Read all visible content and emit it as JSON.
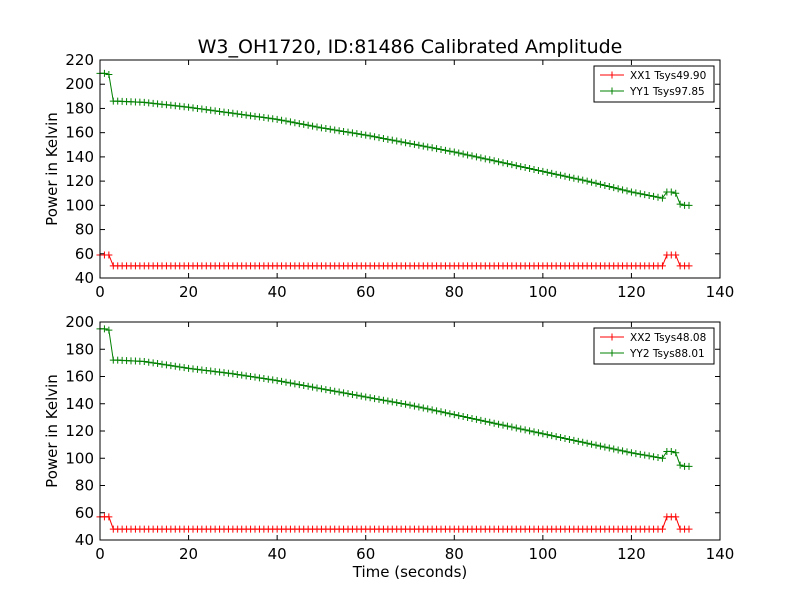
{
  "figure": {
    "title": "W3_OH1720, ID:81486 Calibrated Amplitude"
  },
  "chart_data": [
    {
      "type": "line",
      "title": "W3_OH1720, ID:81486 Calibrated Amplitude",
      "xlabel": "",
      "ylabel": "Power in Kelvin",
      "xlim": [
        0,
        140
      ],
      "ylim": [
        40,
        220
      ],
      "xticks": [
        0,
        20,
        40,
        60,
        80,
        100,
        120,
        140
      ],
      "yticks": [
        40,
        60,
        80,
        100,
        120,
        140,
        160,
        180,
        200,
        220
      ],
      "legend_position": "top-right",
      "marker": "+",
      "series": [
        {
          "name": "XX1 Tsys49.90",
          "color": "#ff0000",
          "x": [
            0,
            1,
            2,
            3,
            4,
            10,
            20,
            30,
            40,
            50,
            60,
            70,
            80,
            90,
            100,
            110,
            120,
            127,
            128,
            129,
            130,
            131,
            132,
            133
          ],
          "values": [
            59,
            59,
            59,
            50,
            50,
            50,
            50,
            50,
            50,
            50,
            50,
            50,
            50,
            50,
            50,
            50,
            50,
            50,
            59,
            59,
            59,
            50,
            50,
            50
          ]
        },
        {
          "name": "YY1 Tsys97.85",
          "color": "#008000",
          "x": [
            0,
            1,
            2,
            3,
            4,
            10,
            20,
            30,
            40,
            50,
            60,
            70,
            80,
            90,
            100,
            110,
            120,
            127,
            128,
            129,
            130,
            131,
            132,
            133
          ],
          "values": [
            209,
            209,
            208,
            186,
            186,
            185,
            181,
            176,
            171,
            164,
            158,
            151,
            144,
            136,
            128,
            120,
            111,
            106,
            111,
            111,
            110,
            101,
            100,
            100
          ]
        }
      ]
    },
    {
      "type": "line",
      "title": "",
      "xlabel": "Time (seconds)",
      "ylabel": "Power in Kelvin",
      "xlim": [
        0,
        140
      ],
      "ylim": [
        40,
        200
      ],
      "xticks": [
        0,
        20,
        40,
        60,
        80,
        100,
        120,
        140
      ],
      "yticks": [
        40,
        60,
        80,
        100,
        120,
        140,
        160,
        180,
        200
      ],
      "legend_position": "top-right",
      "marker": "+",
      "series": [
        {
          "name": "XX2 Tsys48.08",
          "color": "#ff0000",
          "x": [
            0,
            1,
            2,
            3,
            4,
            10,
            20,
            30,
            40,
            50,
            60,
            70,
            80,
            90,
            100,
            110,
            120,
            127,
            128,
            129,
            130,
            131,
            132,
            133
          ],
          "values": [
            57,
            57,
            57,
            48,
            48,
            48,
            48,
            48,
            48,
            48,
            48,
            48,
            48,
            48,
            48,
            48,
            48,
            48,
            57,
            57,
            57,
            48,
            48,
            48
          ]
        },
        {
          "name": "YY2 Tsys88.01",
          "color": "#008000",
          "x": [
            0,
            1,
            2,
            3,
            4,
            10,
            20,
            30,
            40,
            50,
            60,
            70,
            80,
            90,
            100,
            110,
            120,
            127,
            128,
            129,
            130,
            131,
            132,
            133
          ],
          "values": [
            195,
            195,
            194,
            172,
            172,
            171,
            166,
            162,
            157,
            151,
            145,
            139,
            132,
            125,
            118,
            111,
            104,
            100,
            105,
            105,
            104,
            95,
            94,
            94
          ]
        }
      ]
    }
  ]
}
